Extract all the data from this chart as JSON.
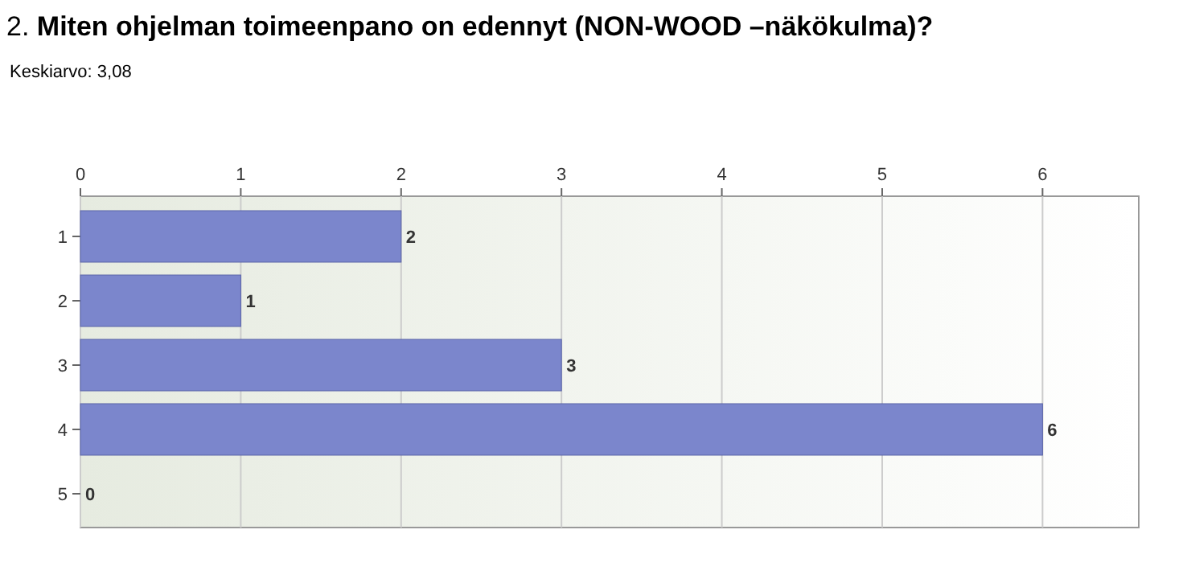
{
  "chart_data": {
    "type": "bar",
    "orientation": "horizontal",
    "title": "2. Miten ohjelman toimeenpano on edennyt (NON-WOOD –näkökulma)?",
    "subtitle": "Keskiarvo:  3,08",
    "categories": [
      "1",
      "2",
      "3",
      "4",
      "5"
    ],
    "values": [
      2,
      1,
      3,
      6,
      0
    ],
    "color": "#7b86cc",
    "xlim": [
      0,
      6.6
    ],
    "xticks": [
      0,
      1,
      2,
      3,
      4,
      5,
      6
    ],
    "grid": "x",
    "data_labels": true
  }
}
